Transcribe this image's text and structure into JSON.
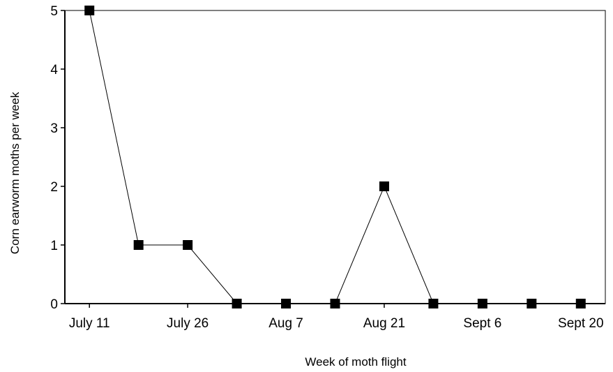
{
  "chart_data": {
    "type": "line",
    "title": "",
    "xlabel": "Week of moth flight",
    "ylabel": "Corn earworm moths per week",
    "x_tick_labels": [
      "July 11",
      "July 26",
      "Aug 7",
      "Aug 21",
      "Sept 6",
      "Sept 20"
    ],
    "x_tick_positions": [
      1,
      3,
      5,
      7,
      9,
      11
    ],
    "y_ticks": [
      0,
      1,
      2,
      3,
      4,
      5
    ],
    "xlim": [
      0.5,
      11.5
    ],
    "ylim": [
      0,
      5
    ],
    "grid": false,
    "marker": "square",
    "series": [
      {
        "x": [
          1,
          2,
          3,
          4,
          5,
          6,
          7,
          8,
          9,
          10,
          11
        ],
        "values": [
          5,
          1,
          1,
          0,
          0,
          0,
          2,
          0,
          0,
          0,
          0
        ]
      }
    ],
    "colors": {
      "line": "#000000",
      "marker": "#000000",
      "axis": "#000000"
    }
  }
}
